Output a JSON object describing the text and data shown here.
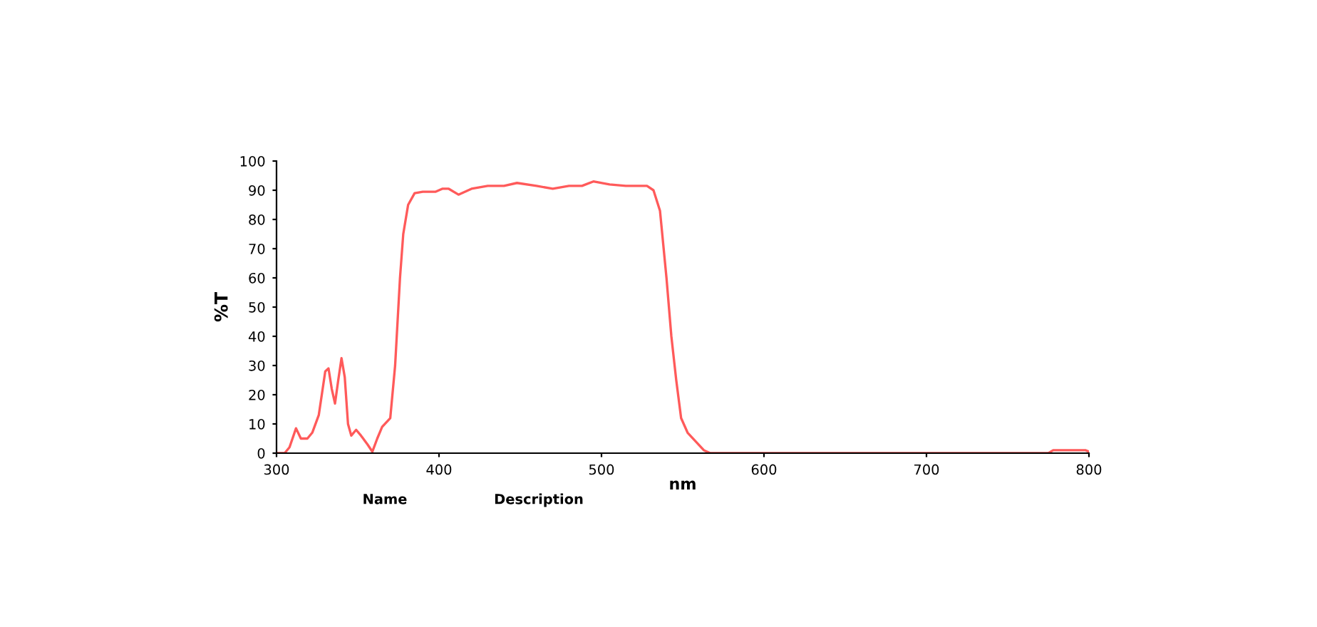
{
  "chart_data": {
    "type": "line",
    "xlabel": "nm",
    "ylabel": "%T",
    "x": [
      300,
      305,
      308,
      312,
      315,
      319,
      322,
      326,
      330,
      332,
      334,
      336,
      338,
      340,
      342,
      344,
      346,
      349,
      352,
      356,
      359,
      362,
      365,
      370,
      373,
      376,
      378,
      381,
      385,
      390,
      398,
      402,
      406,
      412,
      420,
      430,
      440,
      448,
      460,
      470,
      480,
      488,
      495,
      505,
      515,
      528,
      532,
      536,
      540,
      543,
      546,
      549,
      553,
      558,
      563,
      567,
      600,
      700,
      775,
      778,
      798,
      800
    ],
    "series": [
      {
        "color": "#ff5a5a",
        "values": [
          0,
          0,
          2,
          8.5,
          5,
          5,
          7,
          13,
          28,
          29,
          22,
          17,
          25,
          32.5,
          26,
          10,
          6,
          8,
          6,
          3,
          0.5,
          5,
          9,
          12,
          30,
          60,
          75,
          85,
          89,
          89.5,
          89.5,
          90.5,
          90.5,
          88.5,
          90.5,
          91.5,
          91.5,
          92.5,
          91.5,
          90.5,
          91.5,
          91.5,
          93,
          92,
          91.5,
          91.5,
          90,
          83,
          60,
          40,
          25,
          12,
          7,
          4,
          1,
          0,
          0,
          0,
          0,
          1,
          1,
          0.5
        ]
      }
    ],
    "xlim": [
      300,
      800
    ],
    "xticks": [
      300,
      400,
      500,
      600,
      700,
      800
    ],
    "ylim": [
      0,
      100
    ],
    "yticks": [
      0,
      10,
      20,
      30,
      40,
      50,
      60,
      70,
      80,
      90,
      100
    ],
    "grid": false,
    "legend": false,
    "marker": "none",
    "line_style": "solid",
    "annotations": [
      "Name",
      "Description"
    ]
  }
}
